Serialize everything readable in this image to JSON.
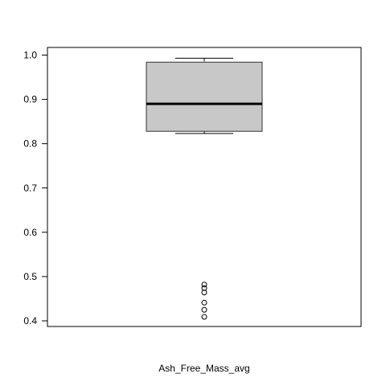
{
  "chart_data": {
    "type": "box",
    "title": "",
    "xlabel": "Ash_Free_Mass_avg",
    "ylabel": "",
    "ylim": [
      0.39,
      1.0
    ],
    "yticks": [
      0.4,
      0.5,
      0.6,
      0.7,
      0.8,
      0.9,
      1.0
    ],
    "ytick_labels": [
      "0.4",
      "0.5",
      "0.6",
      "0.7",
      "0.8",
      "0.9",
      "1.0"
    ],
    "grid": false,
    "box": {
      "whisker_low": 0.823,
      "q1": 0.828,
      "median": 0.89,
      "q3": 0.984,
      "whisker_high": 0.993,
      "fill": "#c8c8c8"
    },
    "outliers": [
      0.482,
      0.474,
      0.464,
      0.441,
      0.425,
      0.409
    ]
  }
}
